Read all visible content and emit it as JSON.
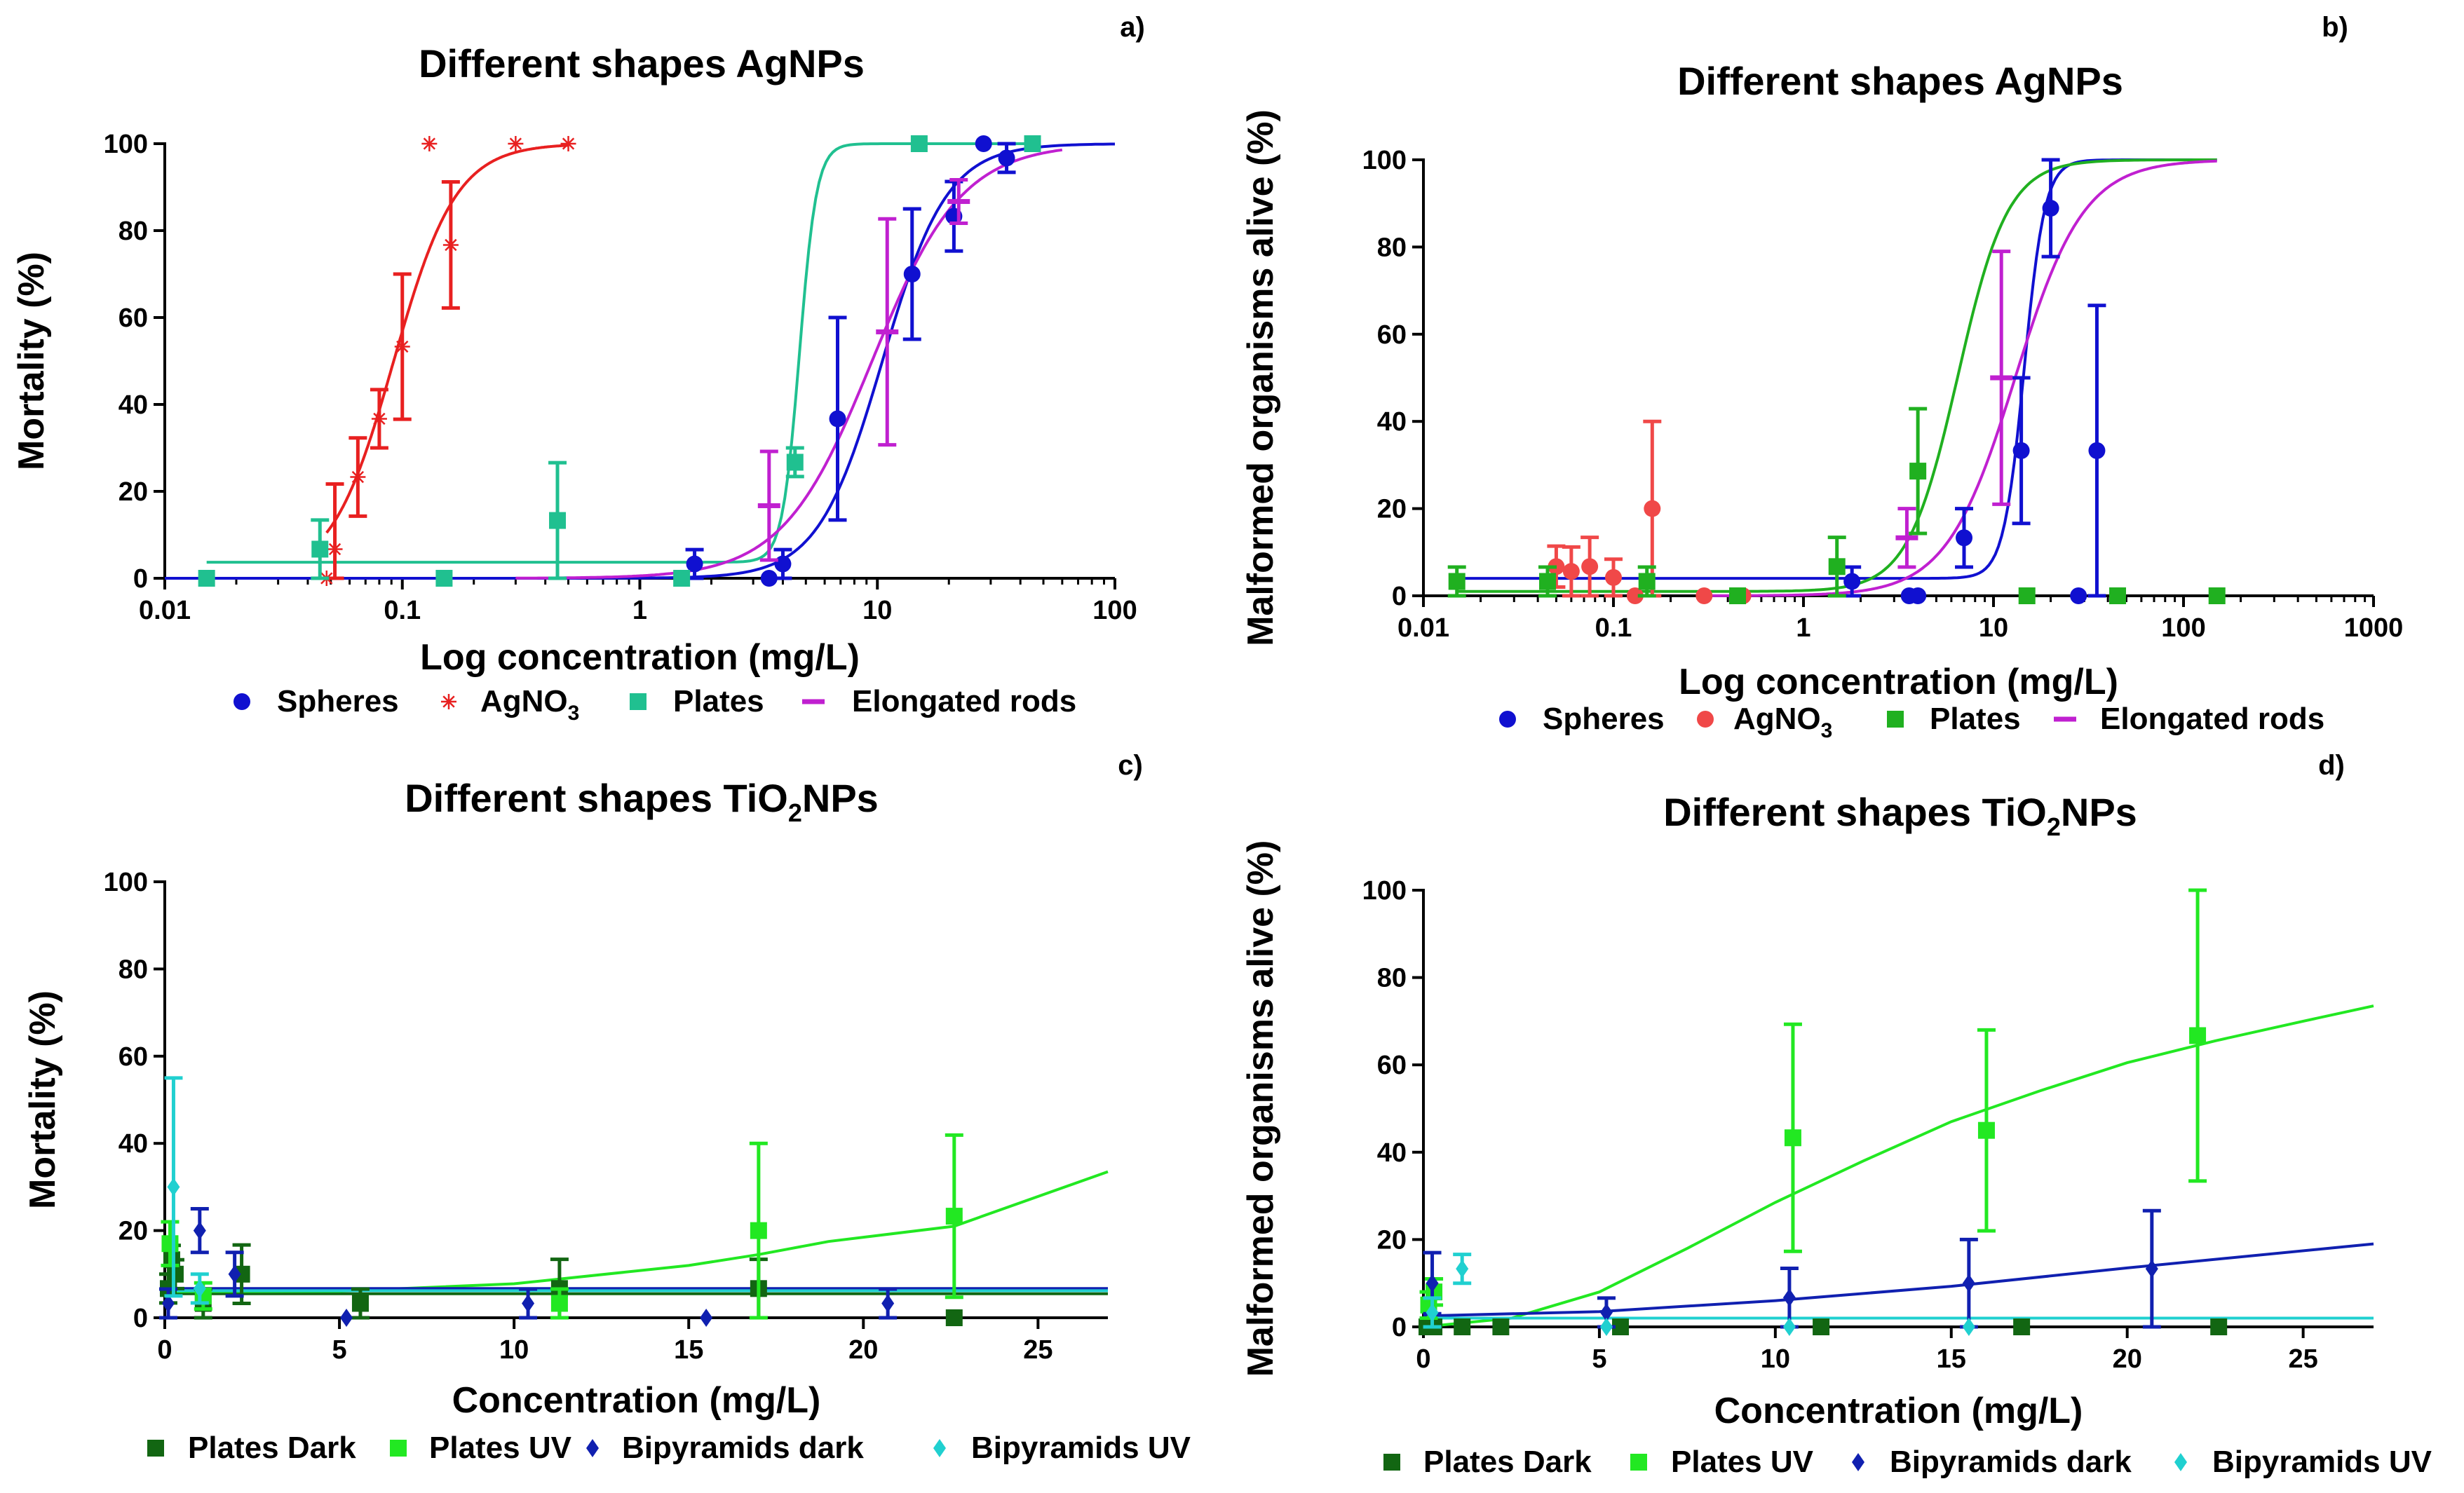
{
  "figure": {
    "page": "3514x2130"
  },
  "chart_data": [
    {
      "id": "a",
      "panel_label": "a)",
      "type": "scatter",
      "title": "Different shapes AgNPs",
      "xlabel": "Log concentration (mg/L)",
      "ylabel": "Mortality (%)",
      "xscale": "log",
      "xlim": [
        0.01,
        100
      ],
      "ylim": [
        0,
        100
      ],
      "xticks": [
        0.01,
        0.1,
        1,
        10,
        100
      ],
      "xtick_labels": [
        "0.01",
        "0.1",
        "1",
        "10",
        "100"
      ],
      "yticks": [
        0,
        20,
        40,
        60,
        80,
        100
      ],
      "ytick_labels": [
        "0",
        "20",
        "40",
        "60",
        "80",
        "100"
      ],
      "legend_position": "bottom",
      "series": [
        {
          "name": "Spheres",
          "color": "#1010d0",
          "marker": "circle",
          "points": [
            {
              "x": 1.7,
              "y": 3.3,
              "err": 3.3
            },
            {
              "x": 3.5,
              "y": 0,
              "err": 0
            },
            {
              "x": 4,
              "y": 3.3,
              "err": 3.3
            },
            {
              "x": 6.8,
              "y": 36.7,
              "err": 23.3
            },
            {
              "x": 14,
              "y": 70,
              "err": 15
            },
            {
              "x": 21,
              "y": 83.3,
              "err": 8
            },
            {
              "x": 28,
              "y": 100,
              "err": 0
            },
            {
              "x": 35,
              "y": 96.7,
              "err": 3.3
            }
          ],
          "curve": {
            "bottom": 0,
            "top": 100,
            "ec50": 10.5,
            "hill": 3.2
          }
        },
        {
          "name": "AgNO3",
          "display_name": "AgNO",
          "subscript": "3",
          "color": "#e82020",
          "marker": "star",
          "points": [
            {
              "x": 0.048,
              "y": 0,
              "err": 0
            },
            {
              "x": 0.052,
              "y": 6.7,
              "err": 15
            },
            {
              "x": 0.065,
              "y": 23.3,
              "err": 9
            },
            {
              "x": 0.08,
              "y": 36.7,
              "err": 6.7
            },
            {
              "x": 0.1,
              "y": 53.3,
              "err": 16.7
            },
            {
              "x": 0.13,
              "y": 100,
              "err": 0
            },
            {
              "x": 0.16,
              "y": 76.7,
              "err": 14.5
            },
            {
              "x": 0.3,
              "y": 100,
              "err": 0
            },
            {
              "x": 0.5,
              "y": 100,
              "err": 0
            }
          ],
          "curve": {
            "bottom": 0,
            "top": 100,
            "ec50": 0.092,
            "hill": 3.3,
            "xmin": 0.048,
            "xmax": 0.5
          }
        },
        {
          "name": "Plates",
          "color": "#20c090",
          "marker": "square",
          "points": [
            {
              "x": 0.015,
              "y": 0,
              "err": 0
            },
            {
              "x": 0.045,
              "y": 6.7,
              "err": 6.7
            },
            {
              "x": 0.15,
              "y": 0,
              "err": 0
            },
            {
              "x": 0.45,
              "y": 13.3,
              "err": 13.3
            },
            {
              "x": 1.5,
              "y": 0,
              "err": 0
            },
            {
              "x": 4.5,
              "y": 26.7,
              "err": 3.3
            },
            {
              "x": 15,
              "y": 100,
              "err": 0
            },
            {
              "x": 45,
              "y": 100,
              "err": 0
            }
          ],
          "curve": {
            "bottom": 3.7,
            "top": 100,
            "ec50": 4.7,
            "hill": 12,
            "xmin": 0.015,
            "xmax": 45
          }
        },
        {
          "name": "Elongated rods",
          "color": "#c020d0",
          "marker": "dash",
          "points": [
            {
              "x": 3.5,
              "y": 16.7,
              "err": 12.5
            },
            {
              "x": 11,
              "y": 56.7,
              "err": 26
            },
            {
              "x": 22,
              "y": 86.7,
              "err": 5
            }
          ],
          "curve": {
            "bottom": 0,
            "top": 100,
            "ec50": 9.5,
            "hill": 2.3,
            "xmin": 0.3,
            "xmax": 60
          }
        }
      ]
    },
    {
      "id": "b",
      "panel_label": "b)",
      "type": "scatter",
      "title": "Different shapes AgNPs",
      "xlabel": "Log concentration (mg/L)",
      "ylabel": "Malformed organisms alive (%)",
      "xscale": "log",
      "xlim": [
        0.01,
        1000
      ],
      "ylim": [
        0,
        100
      ],
      "xticks": [
        0.01,
        0.1,
        1,
        10,
        100,
        1000
      ],
      "xtick_labels": [
        "0.01",
        "0.1",
        "1",
        "10",
        "100",
        "1000"
      ],
      "yticks": [
        0,
        20,
        40,
        60,
        80,
        100
      ],
      "ytick_labels": [
        "0",
        "20",
        "40",
        "60",
        "80",
        "100"
      ],
      "legend_position": "bottom",
      "series": [
        {
          "name": "Spheres",
          "color": "#1010d0",
          "marker": "circle",
          "points": [
            {
              "x": 1.8,
              "y": 3.3,
              "err": 3.3
            },
            {
              "x": 3.6,
              "y": 0,
              "err": 0
            },
            {
              "x": 4,
              "y": 0,
              "err": 0
            },
            {
              "x": 7,
              "y": 13.3,
              "err": 6.7
            },
            {
              "x": 14,
              "y": 33.3,
              "err": 16.7
            },
            {
              "x": 20,
              "y": 88.9,
              "err": 11.1
            },
            {
              "x": 28,
              "y": 0,
              "err": 0
            },
            {
              "x": 35,
              "y": 33.3,
              "err": 33.3
            }
          ],
          "curve": {
            "bottom": 4,
            "top": 100,
            "ec50": 14.5,
            "hill": 8,
            "xmin": 0.015,
            "xmax": 150
          }
        },
        {
          "name": "AgNO3",
          "display_name": "AgNO",
          "subscript": "3",
          "color": "#f04848",
          "marker": "circle",
          "points": [
            {
              "x": 0.05,
              "y": 6.7,
              "err": 4.7
            },
            {
              "x": 0.06,
              "y": 5.6,
              "err": 5.6
            },
            {
              "x": 0.075,
              "y": 6.7,
              "err": 6.7
            },
            {
              "x": 0.1,
              "y": 4.2,
              "err": 4.2
            },
            {
              "x": 0.13,
              "y": 0,
              "err": 0
            },
            {
              "x": 0.16,
              "y": 20,
              "err": 20
            },
            {
              "x": 0.3,
              "y": 0,
              "err": 0
            },
            {
              "x": 0.48,
              "y": 0,
              "err": 0
            }
          ]
        },
        {
          "name": "Plates",
          "color": "#20b020",
          "marker": "square",
          "points": [
            {
              "x": 0.015,
              "y": 3.3,
              "err": 3.3
            },
            {
              "x": 0.045,
              "y": 3.3,
              "err": 3.3
            },
            {
              "x": 0.15,
              "y": 3.3,
              "err": 3.3
            },
            {
              "x": 0.45,
              "y": 0,
              "err": 0
            },
            {
              "x": 1.5,
              "y": 6.7,
              "err": 6.7
            },
            {
              "x": 4,
              "y": 28.6,
              "err": 14.3
            },
            {
              "x": 15,
              "y": 0,
              "err": 0
            },
            {
              "x": 45,
              "y": 0,
              "err": 0
            },
            {
              "x": 150,
              "y": 0,
              "err": 0
            }
          ],
          "curve": {
            "bottom": 1,
            "top": 100,
            "ec50": 6.5,
            "hill": 3.3,
            "xmin": 0.015,
            "xmax": 150
          }
        },
        {
          "name": "Elongated rods",
          "color": "#c020d0",
          "marker": "dash",
          "points": [
            {
              "x": 3.5,
              "y": 13.3,
              "err": 6.7
            },
            {
              "x": 11,
              "y": 50,
              "err": 29
            }
          ],
          "curve": {
            "bottom": 0,
            "top": 100,
            "ec50": 13,
            "hill": 2.4,
            "xmin": 0.3,
            "xmax": 150
          }
        }
      ]
    },
    {
      "id": "c",
      "panel_label": "c)",
      "type": "scatter",
      "title": "Different shapes TiO2NPs",
      "title_parts": [
        "Different shapes TiO",
        "2",
        "NPs"
      ],
      "xlabel": "Concentration (mg/L)",
      "ylabel": "Mortality (%)",
      "xscale": "linear",
      "xlim": [
        0,
        27
      ],
      "ylim": [
        0,
        100
      ],
      "xticks": [
        0,
        5,
        10,
        15,
        20,
        25
      ],
      "xtick_labels": [
        "0",
        "5",
        "10",
        "15",
        "20",
        "25"
      ],
      "yticks": [
        0,
        20,
        40,
        60,
        80,
        100
      ],
      "ytick_labels": [
        "0",
        "20",
        "40",
        "60",
        "80",
        "100"
      ],
      "legend_position": "bottom",
      "series": [
        {
          "name": "Plates Dark",
          "color": "#126612",
          "marker": "square",
          "points": [
            {
              "x": 0.1,
              "y": 6.7,
              "err": 3.3
            },
            {
              "x": 0.2,
              "y": 13.3,
              "err": 3.3
            },
            {
              "x": 0.3,
              "y": 10,
              "err": 3.3
            },
            {
              "x": 1.1,
              "y": 3.3,
              "err": 3.3
            },
            {
              "x": 2.2,
              "y": 10,
              "err": 6.7
            },
            {
              "x": 5.6,
              "y": 3.3,
              "err": 3.3
            },
            {
              "x": 11.3,
              "y": 6.7,
              "err": 6.7
            },
            {
              "x": 17,
              "y": 6.7,
              "err": 6.7
            },
            {
              "x": 22.6,
              "y": 0,
              "err": 0
            }
          ],
          "line": [
            [
              0,
              5.5
            ],
            [
              27,
              5.5
            ]
          ]
        },
        {
          "name": "Plates UV",
          "color": "#22e822",
          "marker": "square",
          "points": [
            {
              "x": 0.15,
              "y": 17,
              "err": 5
            },
            {
              "x": 1.1,
              "y": 5,
              "err": 3
            },
            {
              "x": 11.3,
              "y": 3.3,
              "err": 3.3
            },
            {
              "x": 17,
              "y": 20,
              "err": 20
            },
            {
              "x": 22.6,
              "y": 23.3,
              "err": 18.6
            }
          ],
          "line": [
            [
              0,
              6
            ],
            [
              5,
              6.1
            ],
            [
              10,
              7.8
            ],
            [
              15,
              12
            ],
            [
              17,
              14.5
            ],
            [
              19,
              17.5
            ],
            [
              22.6,
              21
            ],
            [
              27,
              33.5
            ]
          ]
        },
        {
          "name": "Bipyramids dark",
          "color": "#1020b0",
          "marker": "diamond",
          "points": [
            {
              "x": 0.1,
              "y": 3.3,
              "err": 3.3
            },
            {
              "x": 1,
              "y": 20,
              "err": 5
            },
            {
              "x": 2,
              "y": 10,
              "err": 5
            },
            {
              "x": 5.2,
              "y": 0,
              "err": 0
            },
            {
              "x": 10.4,
              "y": 3.3,
              "err": 3.3
            },
            {
              "x": 15.5,
              "y": 0,
              "err": 0
            },
            {
              "x": 20.7,
              "y": 3.3,
              "err": 3.3
            }
          ],
          "line": [
            [
              0,
              6.7
            ],
            [
              27,
              6.7
            ]
          ]
        },
        {
          "name": "Bipyramids UV",
          "color": "#20d0d0",
          "marker": "diamond",
          "points": [
            {
              "x": 0.25,
              "y": 30,
              "err": 25
            },
            {
              "x": 1,
              "y": 6.7,
              "err": 3.3
            }
          ],
          "line": [
            [
              0,
              6.2
            ],
            [
              27,
              6.2
            ]
          ]
        }
      ]
    },
    {
      "id": "d",
      "panel_label": "d)",
      "type": "scatter",
      "title": "Different shapes TiO2NPs",
      "title_parts": [
        "Different shapes TiO",
        "2",
        "NPs"
      ],
      "xlabel": "Concentration (mg/L)",
      "ylabel": "Malformed organisms alive (%)",
      "xscale": "linear",
      "xlim": [
        0,
        27
      ],
      "ylim": [
        0,
        100
      ],
      "xticks": [
        0,
        5,
        10,
        15,
        20,
        25
      ],
      "xtick_labels": [
        "0",
        "5",
        "10",
        "15",
        "20",
        "25"
      ],
      "yticks": [
        0,
        20,
        40,
        60,
        80,
        100
      ],
      "ytick_labels": [
        "0",
        "20",
        "40",
        "60",
        "80",
        "100"
      ],
      "legend_position": "bottom",
      "series": [
        {
          "name": "Plates Dark",
          "color": "#126612",
          "marker": "square",
          "points": [
            {
              "x": 0.1,
              "y": 0,
              "err": 0
            },
            {
              "x": 0.3,
              "y": 0,
              "err": 0
            },
            {
              "x": 1.1,
              "y": 0,
              "err": 0
            },
            {
              "x": 2.2,
              "y": 0,
              "err": 0
            },
            {
              "x": 5.6,
              "y": 0,
              "err": 0
            },
            {
              "x": 11.3,
              "y": 0,
              "err": 0
            },
            {
              "x": 17,
              "y": 0,
              "err": 0
            },
            {
              "x": 22.6,
              "y": 0,
              "err": 0
            }
          ]
        },
        {
          "name": "Plates UV",
          "color": "#22e822",
          "marker": "square",
          "points": [
            {
              "x": 0.15,
              "y": 5,
              "err": 3
            },
            {
              "x": 0.3,
              "y": 8,
              "err": 3
            },
            {
              "x": 10.5,
              "y": 43.3,
              "err": 26
            },
            {
              "x": 16,
              "y": 45,
              "err": 23
            },
            {
              "x": 22,
              "y": 66.7,
              "err": 33.3
            }
          ],
          "line": [
            [
              0,
              0
            ],
            [
              2.5,
              2
            ],
            [
              5,
              8
            ],
            [
              7.5,
              18
            ],
            [
              10,
              28.5
            ],
            [
              12.5,
              38
            ],
            [
              15,
              47
            ],
            [
              17.5,
              54
            ],
            [
              20,
              60.5
            ],
            [
              22.5,
              65.5
            ],
            [
              25,
              70
            ],
            [
              27,
              73.5
            ]
          ]
        },
        {
          "name": "Bipyramids dark",
          "color": "#1020b0",
          "marker": "diamond",
          "points": [
            {
              "x": 0.25,
              "y": 10,
              "err": 7
            },
            {
              "x": 5.2,
              "y": 3.3,
              "err": 3.3
            },
            {
              "x": 10.4,
              "y": 6.7,
              "err": 6.7
            },
            {
              "x": 15.5,
              "y": 10,
              "err": 10
            },
            {
              "x": 20.7,
              "y": 13.3,
              "err": 13.3
            }
          ],
          "line": [
            [
              0,
              2.5
            ],
            [
              5,
              3.5
            ],
            [
              10,
              6
            ],
            [
              15,
              9.3
            ],
            [
              20,
              13.5
            ],
            [
              27,
              19
            ]
          ]
        },
        {
          "name": "Bipyramids UV",
          "color": "#20d0d0",
          "marker": "diamond",
          "points": [
            {
              "x": 0.25,
              "y": 3.3,
              "err": 3.3
            },
            {
              "x": 1.1,
              "y": 13.3,
              "err": 3.3
            },
            {
              "x": 5.2,
              "y": 0,
              "err": 0
            },
            {
              "x": 10.4,
              "y": 0,
              "err": 0
            },
            {
              "x": 15.5,
              "y": 0,
              "err": 0
            }
          ],
          "line": [
            [
              0,
              2
            ],
            [
              27,
              2
            ]
          ]
        }
      ]
    }
  ]
}
